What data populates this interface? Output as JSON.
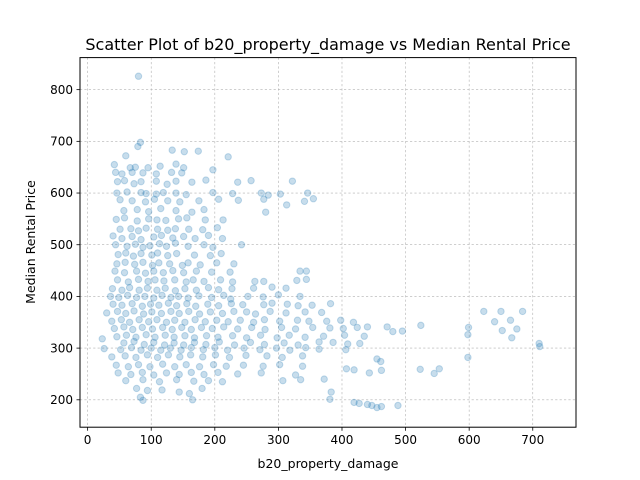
{
  "chart_data": {
    "type": "scatter",
    "title": "Scatter Plot of b20_property_damage vs Median Rental Price",
    "xlabel": "b20_property_damage",
    "ylabel": "Median Rental Price",
    "xlim": [
      -12,
      768
    ],
    "ylim": [
      147,
      862
    ],
    "xticks": [
      0,
      100,
      200,
      300,
      400,
      500,
      600,
      700
    ],
    "yticks": [
      200,
      300,
      400,
      500,
      600,
      700,
      800
    ],
    "grid": true,
    "colors": {
      "marker": "#1f77b4"
    },
    "marker_alpha": 0.25,
    "points": [
      [
        80,
        826
      ],
      [
        83,
        698
      ],
      [
        60,
        672
      ],
      [
        79,
        690
      ],
      [
        133,
        683
      ],
      [
        152,
        680
      ],
      [
        174,
        681
      ],
      [
        42,
        655
      ],
      [
        67,
        649
      ],
      [
        75,
        650
      ],
      [
        95,
        649
      ],
      [
        114,
        652
      ],
      [
        139,
        656
      ],
      [
        151,
        649
      ],
      [
        221,
        670
      ],
      [
        44,
        640
      ],
      [
        54,
        637
      ],
      [
        70,
        640
      ],
      [
        87,
        639
      ],
      [
        108,
        637
      ],
      [
        132,
        640
      ],
      [
        148,
        639
      ],
      [
        197,
        645
      ],
      [
        47,
        622
      ],
      [
        58,
        624
      ],
      [
        73,
        618
      ],
      [
        84,
        622
      ],
      [
        108,
        623
      ],
      [
        125,
        617
      ],
      [
        139,
        623
      ],
      [
        164,
        621
      ],
      [
        186,
        625
      ],
      [
        236,
        621
      ],
      [
        257,
        624
      ],
      [
        322,
        623
      ],
      [
        46,
        600
      ],
      [
        62,
        602
      ],
      [
        84,
        601
      ],
      [
        92,
        599
      ],
      [
        108,
        598
      ],
      [
        119,
        601
      ],
      [
        139,
        600
      ],
      [
        155,
        597
      ],
      [
        197,
        601
      ],
      [
        228,
        599
      ],
      [
        273,
        600
      ],
      [
        284,
        596
      ],
      [
        303,
        598
      ],
      [
        346,
        600
      ],
      [
        355,
        589
      ],
      [
        51,
        587
      ],
      [
        70,
        585
      ],
      [
        91,
        583
      ],
      [
        105,
        588
      ],
      [
        126,
        585
      ],
      [
        145,
        583
      ],
      [
        175,
        585
      ],
      [
        206,
        588
      ],
      [
        237,
        586
      ],
      [
        277,
        588
      ],
      [
        313,
        577
      ],
      [
        341,
        584
      ],
      [
        57,
        566
      ],
      [
        78,
        568
      ],
      [
        96,
        564
      ],
      [
        115,
        570
      ],
      [
        139,
        566
      ],
      [
        164,
        563
      ],
      [
        183,
        568
      ],
      [
        280,
        563
      ],
      [
        45,
        549
      ],
      [
        58,
        552
      ],
      [
        78,
        546
      ],
      [
        96,
        550
      ],
      [
        109,
        548
      ],
      [
        123,
        547
      ],
      [
        143,
        550
      ],
      [
        156,
        552
      ],
      [
        185,
        548
      ],
      [
        213,
        548
      ],
      [
        51,
        530
      ],
      [
        68,
        531
      ],
      [
        80,
        527
      ],
      [
        92,
        532
      ],
      [
        110,
        530
      ],
      [
        126,
        528
      ],
      [
        138,
        531
      ],
      [
        159,
        530
      ],
      [
        181,
        529
      ],
      [
        204,
        533
      ],
      [
        40,
        517
      ],
      [
        54,
        512
      ],
      [
        70,
        516
      ],
      [
        84,
        510
      ],
      [
        104,
        515
      ],
      [
        116,
        518
      ],
      [
        134,
        513
      ],
      [
        151,
        516
      ],
      [
        169,
        512
      ],
      [
        190,
        518
      ],
      [
        212,
        512
      ],
      [
        44,
        500
      ],
      [
        62,
        497
      ],
      [
        75,
        501
      ],
      [
        87,
        495
      ],
      [
        98,
        498
      ],
      [
        113,
        502
      ],
      [
        124,
        497
      ],
      [
        138,
        503
      ],
      [
        158,
        497
      ],
      [
        183,
        500
      ],
      [
        197,
        495
      ],
      [
        242,
        500
      ],
      [
        48,
        481
      ],
      [
        60,
        484
      ],
      [
        72,
        478
      ],
      [
        84,
        483
      ],
      [
        101,
        480
      ],
      [
        110,
        484
      ],
      [
        126,
        479
      ],
      [
        140,
        483
      ],
      [
        168,
        480
      ],
      [
        193,
        479
      ],
      [
        210,
        483
      ],
      [
        46,
        463
      ],
      [
        59,
        466
      ],
      [
        74,
        462
      ],
      [
        87,
        466
      ],
      [
        102,
        460
      ],
      [
        112,
        465
      ],
      [
        129,
        463
      ],
      [
        149,
        460
      ],
      [
        158,
        465
      ],
      [
        177,
        461
      ],
      [
        203,
        465
      ],
      [
        230,
        463
      ],
      [
        43,
        449
      ],
      [
        58,
        446
      ],
      [
        77,
        449
      ],
      [
        91,
        445
      ],
      [
        104,
        449
      ],
      [
        119,
        446
      ],
      [
        134,
        450
      ],
      [
        151,
        446
      ],
      [
        171,
        449
      ],
      [
        195,
        447
      ],
      [
        224,
        447
      ],
      [
        334,
        449
      ],
      [
        344,
        449
      ],
      [
        47,
        432
      ],
      [
        64,
        428
      ],
      [
        80,
        433
      ],
      [
        95,
        429
      ],
      [
        106,
        432
      ],
      [
        120,
        430
      ],
      [
        137,
        432
      ],
      [
        155,
        428
      ],
      [
        166,
        432
      ],
      [
        183,
        429
      ],
      [
        209,
        432
      ],
      [
        228,
        428
      ],
      [
        263,
        429
      ],
      [
        277,
        429
      ],
      [
        329,
        431
      ],
      [
        344,
        433
      ],
      [
        39,
        415
      ],
      [
        54,
        412
      ],
      [
        66,
        417
      ],
      [
        81,
        412
      ],
      [
        94,
        416
      ],
      [
        109,
        412
      ],
      [
        122,
        416
      ],
      [
        138,
        411
      ],
      [
        153,
        415
      ],
      [
        171,
        412
      ],
      [
        190,
        417
      ],
      [
        206,
        413
      ],
      [
        227,
        415
      ],
      [
        261,
        416
      ],
      [
        290,
        418
      ],
      [
        312,
        416
      ],
      [
        36,
        400
      ],
      [
        49,
        398
      ],
      [
        63,
        402
      ],
      [
        77,
        398
      ],
      [
        90,
        400
      ],
      [
        104,
        397
      ],
      [
        117,
        402
      ],
      [
        131,
        398
      ],
      [
        143,
        400
      ],
      [
        158,
        397
      ],
      [
        175,
        401
      ],
      [
        195,
        398
      ],
      [
        214,
        402
      ],
      [
        225,
        395
      ],
      [
        252,
        400
      ],
      [
        276,
        399
      ],
      [
        300,
        403
      ],
      [
        334,
        400
      ],
      [
        40,
        385
      ],
      [
        54,
        383
      ],
      [
        70,
        386
      ],
      [
        86,
        381
      ],
      [
        99,
        385
      ],
      [
        112,
        383
      ],
      [
        127,
        387
      ],
      [
        140,
        382
      ],
      [
        156,
        386
      ],
      [
        170,
        381
      ],
      [
        189,
        385
      ],
      [
        206,
        382
      ],
      [
        226,
        386
      ],
      [
        244,
        384
      ],
      [
        277,
        384
      ],
      [
        290,
        387
      ],
      [
        314,
        385
      ],
      [
        331,
        382
      ],
      [
        353,
        383
      ],
      [
        382,
        386
      ],
      [
        30,
        368
      ],
      [
        47,
        371
      ],
      [
        60,
        367
      ],
      [
        73,
        372
      ],
      [
        88,
        366
      ],
      [
        101,
        370
      ],
      [
        116,
        367
      ],
      [
        131,
        371
      ],
      [
        144,
        367
      ],
      [
        159,
        371
      ],
      [
        176,
        366
      ],
      [
        193,
        370
      ],
      [
        212,
        367
      ],
      [
        230,
        371
      ],
      [
        250,
        370
      ],
      [
        264,
        366
      ],
      [
        287,
        371
      ],
      [
        312,
        368
      ],
      [
        342,
        370
      ],
      [
        368,
        369
      ],
      [
        623,
        371
      ],
      [
        650,
        371
      ],
      [
        684,
        371
      ],
      [
        38,
        352
      ],
      [
        53,
        355
      ],
      [
        66,
        350
      ],
      [
        81,
        355
      ],
      [
        96,
        351
      ],
      [
        109,
        355
      ],
      [
        124,
        350
      ],
      [
        137,
        354
      ],
      [
        153,
        350
      ],
      [
        169,
        355
      ],
      [
        185,
        351
      ],
      [
        203,
        354
      ],
      [
        221,
        351
      ],
      [
        240,
        354
      ],
      [
        261,
        350
      ],
      [
        278,
        355
      ],
      [
        302,
        352
      ],
      [
        330,
        354
      ],
      [
        348,
        352
      ],
      [
        376,
        352
      ],
      [
        398,
        354
      ],
      [
        418,
        350
      ],
      [
        640,
        351
      ],
      [
        665,
        354
      ],
      [
        42,
        338
      ],
      [
        57,
        341
      ],
      [
        71,
        336
      ],
      [
        86,
        340
      ],
      [
        102,
        337
      ],
      [
        118,
        340
      ],
      [
        133,
        336
      ],
      [
        148,
        340
      ],
      [
        163,
        336
      ],
      [
        179,
        340
      ],
      [
        196,
        338
      ],
      [
        214,
        341
      ],
      [
        236,
        337
      ],
      [
        258,
        340
      ],
      [
        279,
        336
      ],
      [
        305,
        340
      ],
      [
        327,
        337
      ],
      [
        354,
        340
      ],
      [
        381,
        339
      ],
      [
        402,
        338
      ],
      [
        424,
        340
      ],
      [
        440,
        341
      ],
      [
        471,
        341
      ],
      [
        524,
        344
      ],
      [
        599,
        340
      ],
      [
        652,
        334
      ],
      [
        675,
        337
      ],
      [
        46,
        322
      ],
      [
        61,
        325
      ],
      [
        76,
        321
      ],
      [
        92,
        326
      ],
      [
        106,
        321
      ],
      [
        122,
        325
      ],
      [
        136,
        321
      ],
      [
        153,
        324
      ],
      [
        168,
        320
      ],
      [
        187,
        324
      ],
      [
        205,
        321
      ],
      [
        228,
        324
      ],
      [
        250,
        320
      ],
      [
        272,
        325
      ],
      [
        298,
        320
      ],
      [
        317,
        325
      ],
      [
        342,
        321
      ],
      [
        371,
        323
      ],
      [
        404,
        325
      ],
      [
        435,
        323
      ],
      [
        480,
        332
      ],
      [
        495,
        333
      ],
      [
        598,
        326
      ],
      [
        667,
        320
      ],
      [
        23,
        318
      ],
      [
        57,
        310
      ],
      [
        73,
        313
      ],
      [
        89,
        307
      ],
      [
        104,
        311
      ],
      [
        121,
        306
      ],
      [
        136,
        310
      ],
      [
        151,
        306
      ],
      [
        168,
        311
      ],
      [
        186,
        307
      ],
      [
        207,
        312
      ],
      [
        231,
        306
      ],
      [
        256,
        311
      ],
      [
        278,
        307
      ],
      [
        309,
        310
      ],
      [
        331,
        306
      ],
      [
        364,
        312
      ],
      [
        386,
        311
      ],
      [
        409,
        308
      ],
      [
        428,
        309
      ],
      [
        710,
        309
      ],
      [
        26,
        299
      ],
      [
        52,
        297
      ],
      [
        69,
        301
      ],
      [
        84,
        296
      ],
      [
        100,
        300
      ],
      [
        115,
        296
      ],
      [
        130,
        300
      ],
      [
        147,
        296
      ],
      [
        163,
        301
      ],
      [
        182,
        297
      ],
      [
        200,
        301
      ],
      [
        220,
        296
      ],
      [
        246,
        300
      ],
      [
        271,
        297
      ],
      [
        297,
        300
      ],
      [
        318,
        296
      ],
      [
        343,
        301
      ],
      [
        364,
        298
      ],
      [
        406,
        297
      ],
      [
        711,
        303
      ],
      [
        38,
        283
      ],
      [
        59,
        285
      ],
      [
        76,
        282
      ],
      [
        94,
        287
      ],
      [
        110,
        282
      ],
      [
        127,
        287
      ],
      [
        145,
        283
      ],
      [
        162,
        287
      ],
      [
        181,
        283
      ],
      [
        201,
        287
      ],
      [
        223,
        282
      ],
      [
        249,
        286
      ],
      [
        282,
        285
      ],
      [
        306,
        282
      ],
      [
        338,
        285
      ],
      [
        455,
        279
      ],
      [
        461,
        274
      ],
      [
        598,
        282
      ],
      [
        45,
        267
      ],
      [
        64,
        264
      ],
      [
        80,
        268
      ],
      [
        98,
        264
      ],
      [
        118,
        269
      ],
      [
        137,
        264
      ],
      [
        155,
        268
      ],
      [
        176,
        264
      ],
      [
        198,
        268
      ],
      [
        218,
        265
      ],
      [
        245,
        267
      ],
      [
        276,
        265
      ],
      [
        302,
        268
      ],
      [
        338,
        265
      ],
      [
        48,
        252
      ],
      [
        68,
        249
      ],
      [
        86,
        253
      ],
      [
        104,
        248
      ],
      [
        124,
        252
      ],
      [
        144,
        249
      ],
      [
        163,
        253
      ],
      [
        183,
        249
      ],
      [
        205,
        253
      ],
      [
        236,
        250
      ],
      [
        273,
        252
      ],
      [
        327,
        248
      ],
      [
        407,
        260
      ],
      [
        419,
        258
      ],
      [
        443,
        252
      ],
      [
        462,
        257
      ],
      [
        523,
        259
      ],
      [
        545,
        251
      ],
      [
        553,
        260
      ],
      [
        60,
        237
      ],
      [
        87,
        239
      ],
      [
        113,
        235
      ],
      [
        140,
        239
      ],
      [
        167,
        236
      ],
      [
        190,
        237
      ],
      [
        212,
        235
      ],
      [
        307,
        237
      ],
      [
        335,
        239
      ],
      [
        372,
        240
      ],
      [
        77,
        222
      ],
      [
        83,
        205
      ],
      [
        94,
        218
      ],
      [
        117,
        219
      ],
      [
        144,
        215
      ],
      [
        160,
        212
      ],
      [
        180,
        222
      ],
      [
        383,
        215
      ],
      [
        87,
        199
      ],
      [
        165,
        200
      ],
      [
        381,
        201
      ],
      [
        419,
        195
      ],
      [
        427,
        193
      ],
      [
        440,
        191
      ],
      [
        447,
        189
      ],
      [
        455,
        185
      ],
      [
        462,
        187
      ],
      [
        488,
        189
      ]
    ]
  }
}
